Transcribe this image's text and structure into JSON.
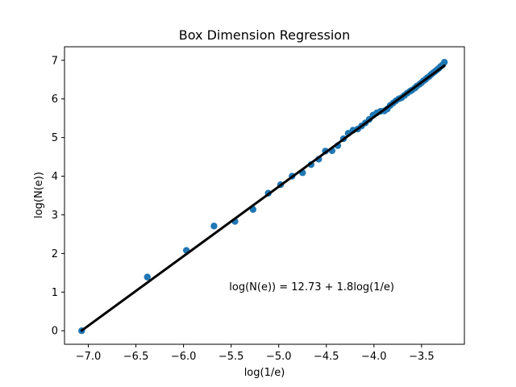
{
  "chart_data": {
    "type": "scatter",
    "title": "Box Dimension Regression",
    "xlabel": "log(1/e)",
    "ylabel": "log(N(e))",
    "xlim": [
      -7.25,
      -3.05
    ],
    "ylim": [
      -0.35,
      7.35
    ],
    "xticks": [
      -7.0,
      -6.5,
      -6.0,
      -5.5,
      -5.0,
      -4.5,
      -4.0,
      -3.5
    ],
    "xtick_labels": [
      "−7.0",
      "−6.5",
      "−6.0",
      "−5.5",
      "−5.0",
      "−4.5",
      "−4.0",
      "−3.5"
    ],
    "yticks": [
      0,
      1,
      2,
      3,
      4,
      5,
      6,
      7
    ],
    "ytick_labels": [
      "0",
      "1",
      "2",
      "3",
      "4",
      "5",
      "6",
      "7"
    ],
    "grid": false,
    "point_color": "#1f77b4",
    "line_color": "#000000",
    "points": {
      "x": [
        -7.07,
        -6.38,
        -5.97,
        -5.68,
        -5.46,
        -5.27,
        -5.11,
        -4.98,
        -4.86,
        -4.75,
        -4.66,
        -4.58,
        -4.51,
        -4.44,
        -4.38,
        -4.32,
        -4.27,
        -4.22,
        -4.17,
        -4.13,
        -4.09,
        -4.05,
        -4.01,
        -3.97,
        -3.93,
        -3.89,
        -3.86,
        -3.83,
        -3.8,
        -3.77,
        -3.74,
        -3.71,
        -3.68,
        -3.65,
        -3.62,
        -3.6,
        -3.57,
        -3.55,
        -3.52,
        -3.5,
        -3.48,
        -3.46,
        -3.44,
        -3.42,
        -3.4,
        -3.38,
        -3.36,
        -3.34,
        -3.32,
        -3.3,
        -3.28,
        -3.26
      ],
      "y": [
        0.0,
        1.39,
        2.08,
        2.71,
        2.83,
        3.14,
        3.56,
        3.78,
        4.0,
        4.09,
        4.3,
        4.44,
        4.65,
        4.66,
        4.79,
        4.97,
        5.11,
        5.19,
        5.22,
        5.3,
        5.38,
        5.47,
        5.58,
        5.64,
        5.68,
        5.69,
        5.74,
        5.83,
        5.89,
        5.95,
        6.0,
        6.03,
        6.09,
        6.15,
        6.2,
        6.23,
        6.28,
        6.33,
        6.38,
        6.42,
        6.47,
        6.5,
        6.55,
        6.58,
        6.63,
        6.67,
        6.71,
        6.75,
        6.79,
        6.84,
        6.88,
        6.95
      ]
    },
    "regression": {
      "intercept": 12.73,
      "slope": 1.8,
      "x_range": [
        -7.07,
        -3.26
      ]
    },
    "annotation": {
      "text": "log(N(e)) = 12.73 + 1.8log(1/e)",
      "x": -5.52,
      "y": 1.05
    }
  }
}
